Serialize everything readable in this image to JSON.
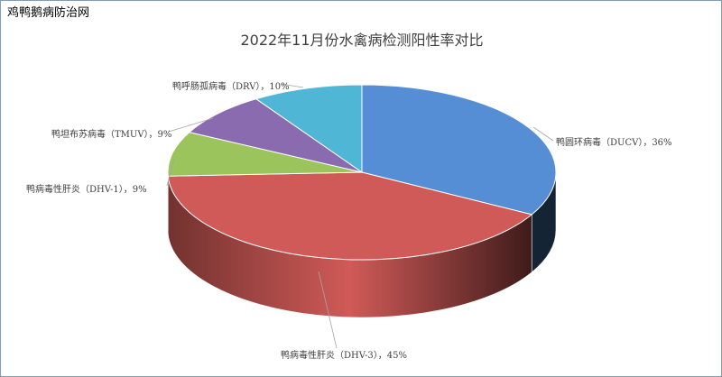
{
  "site_name": "鸡鸭鹅病防治网",
  "chart_data": {
    "type": "pie",
    "style": "3d",
    "title": "2022年11月份水禽病检测阳性率对比",
    "start": "top",
    "direction": "clockwise",
    "slices": [
      {
        "name": "鸭圆环病毒（DUCV）",
        "value": 36,
        "label": "鸭圆环病毒（DUCV），36%",
        "color": "#558ed5"
      },
      {
        "name": "鸭病毒性肝炎（DHV-3）",
        "value": 45,
        "label": "鸭病毒性肝炎（DHV-3），45%",
        "color": "#d05a57"
      },
      {
        "name": "鸭病毒性肝炎（DHV-1）",
        "value": 9,
        "label": "鸭病毒性肝炎（DHV-1），9%",
        "color": "#9bc45d"
      },
      {
        "name": "鸭坦布苏病毒（TMUV）",
        "value": 9,
        "label": "鸭坦布苏病毒（TMUV），9%",
        "color": "#8a6bb0"
      },
      {
        "name": "鸭呼肠孤病毒（DRV）",
        "value": 10,
        "label": "鸭呼肠孤病毒（DRV），10%",
        "color": "#4fb6d6"
      }
    ],
    "legend": "none"
  }
}
